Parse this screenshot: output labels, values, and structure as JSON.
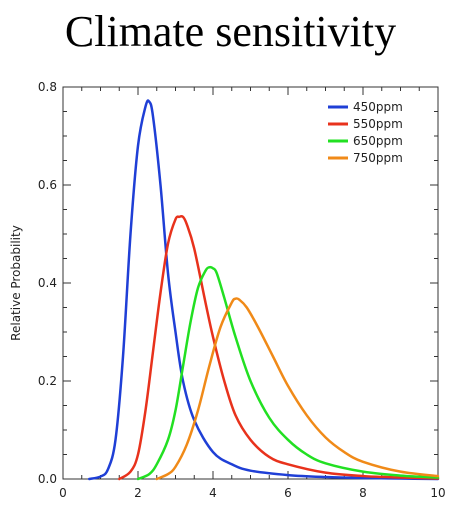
{
  "chart_data": {
    "type": "line",
    "title": "Climate sensitivity",
    "xlabel": "",
    "ylabel": "Relative Probability",
    "xlim": [
      0,
      10
    ],
    "ylim": [
      0,
      0.8
    ],
    "xticks": [
      0,
      2,
      4,
      6,
      8,
      10
    ],
    "yticks": [
      0.0,
      0.2,
      0.4,
      0.6,
      0.8
    ],
    "ytick_labels": [
      "0.0",
      "0.2",
      "0.4",
      "0.6",
      "0.8"
    ],
    "grid": false,
    "legend_position": "top-right",
    "series": [
      {
        "name": "450ppm",
        "color": "#1f3fd6",
        "x": [
          0.7,
          1.0,
          1.2,
          1.4,
          1.6,
          1.8,
          2.0,
          2.2,
          2.3,
          2.4,
          2.6,
          2.8,
          3.0,
          3.2,
          3.5,
          4.0,
          4.5,
          5.0,
          6.0,
          7.0,
          8.0,
          9.0,
          10.0
        ],
        "y": [
          0.0,
          0.005,
          0.02,
          0.08,
          0.25,
          0.5,
          0.68,
          0.76,
          0.77,
          0.74,
          0.6,
          0.42,
          0.3,
          0.2,
          0.12,
          0.055,
          0.03,
          0.017,
          0.008,
          0.004,
          0.002,
          0.001,
          0.0
        ]
      },
      {
        "name": "550ppm",
        "color": "#e8321c",
        "x": [
          1.5,
          1.8,
          2.0,
          2.2,
          2.4,
          2.6,
          2.8,
          3.0,
          3.1,
          3.2,
          3.3,
          3.5,
          3.8,
          4.0,
          4.3,
          4.6,
          5.0,
          5.5,
          6.0,
          7.0,
          8.0,
          9.0,
          10.0
        ],
        "y": [
          0.0,
          0.015,
          0.05,
          0.14,
          0.26,
          0.38,
          0.48,
          0.53,
          0.535,
          0.535,
          0.52,
          0.47,
          0.36,
          0.29,
          0.2,
          0.13,
          0.08,
          0.045,
          0.03,
          0.013,
          0.006,
          0.003,
          0.001
        ]
      },
      {
        "name": "650ppm",
        "color": "#22e022",
        "x": [
          2.0,
          2.3,
          2.5,
          2.8,
          3.0,
          3.2,
          3.4,
          3.6,
          3.8,
          3.9,
          4.0,
          4.1,
          4.3,
          4.6,
          5.0,
          5.5,
          6.0,
          6.5,
          7.0,
          8.0,
          9.0,
          10.0
        ],
        "y": [
          0.0,
          0.01,
          0.03,
          0.08,
          0.14,
          0.23,
          0.32,
          0.39,
          0.425,
          0.432,
          0.43,
          0.42,
          0.37,
          0.29,
          0.2,
          0.125,
          0.08,
          0.05,
          0.032,
          0.015,
          0.007,
          0.003
        ]
      },
      {
        "name": "750ppm",
        "color": "#f08a18",
        "x": [
          2.5,
          2.8,
          3.0,
          3.3,
          3.6,
          3.9,
          4.2,
          4.5,
          4.6,
          4.7,
          4.9,
          5.2,
          5.6,
          6.0,
          6.5,
          7.0,
          7.5,
          8.0,
          9.0,
          10.0
        ],
        "y": [
          0.0,
          0.01,
          0.025,
          0.07,
          0.14,
          0.23,
          0.31,
          0.36,
          0.368,
          0.366,
          0.35,
          0.31,
          0.25,
          0.19,
          0.13,
          0.085,
          0.055,
          0.035,
          0.015,
          0.006
        ]
      }
    ]
  }
}
